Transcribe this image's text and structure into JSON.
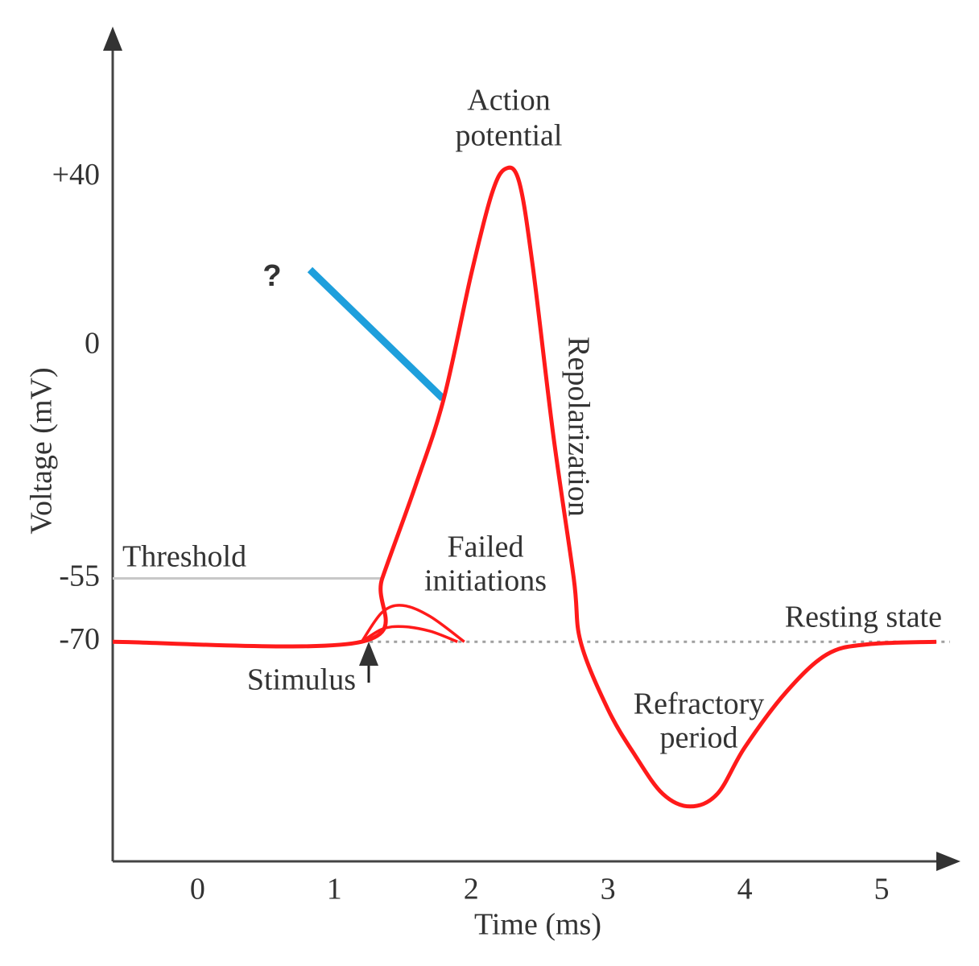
{
  "chart_data": {
    "type": "line",
    "x_label": "Time (ms)",
    "y_label": "Voltage (mV)",
    "xlim": [
      -0.62,
      5.5
    ],
    "ylim": [
      -122,
      73.4
    ],
    "xticks": [
      0,
      1,
      2,
      3,
      4,
      5
    ],
    "yticks": [
      {
        "value": 40,
        "label": "+40"
      },
      0,
      -55,
      -70
    ],
    "series": [
      {
        "color": "#ff1a1a",
        "x": [
          -0.62,
          1.2,
          1.35,
          1.6,
          1.8,
          2.0,
          2.15,
          2.25,
          2.35,
          2.45,
          2.6,
          2.75,
          2.8,
          3.0,
          3.2,
          3.4,
          3.6,
          3.8,
          4.0,
          4.3,
          4.6,
          4.9,
          5.4
        ],
        "values": [
          -70,
          -70,
          -55,
          -32.4,
          -12.4,
          17,
          36,
          42,
          39,
          19,
          -21,
          -55,
          -70,
          -86,
          -97,
          -106,
          -109,
          -106,
          -95,
          -82,
          -73,
          -70.6,
          -70
        ]
      },
      {
        "color": "#ff1a1a",
        "x": [
          1.2,
          1.35,
          1.5,
          1.7,
          1.95
        ],
        "values": [
          -70,
          -63,
          -61.4,
          -64,
          -70
        ]
      },
      {
        "color": "#ff1a1a",
        "x": [
          1.2,
          1.35,
          1.5,
          1.7,
          1.9
        ],
        "values": [
          -70,
          -67,
          -66.4,
          -67.5,
          -70
        ]
      }
    ],
    "reference_lines": [
      {
        "value": -55,
        "x": [
          -0.62,
          1.35
        ],
        "color": "#c8c8c8",
        "style": "solid"
      },
      {
        "value": -70,
        "x": [
          1.2,
          5.5
        ],
        "color": "#a0a0a0",
        "style": "dotted"
      }
    ],
    "annotations": [
      {
        "lines": [
          "Action",
          "potential"
        ]
      },
      {
        "lines": [
          "Repolarization"
        ]
      },
      {
        "lines": [
          "Threshold"
        ]
      },
      {
        "lines": [
          "Failed",
          "initiations"
        ]
      },
      {
        "lines": [
          "Resting state"
        ]
      },
      {
        "lines": [
          "Stimulus"
        ]
      },
      {
        "lines": [
          "Refractory",
          "period"
        ]
      },
      {
        "lines": [
          "?"
        ]
      }
    ]
  }
}
